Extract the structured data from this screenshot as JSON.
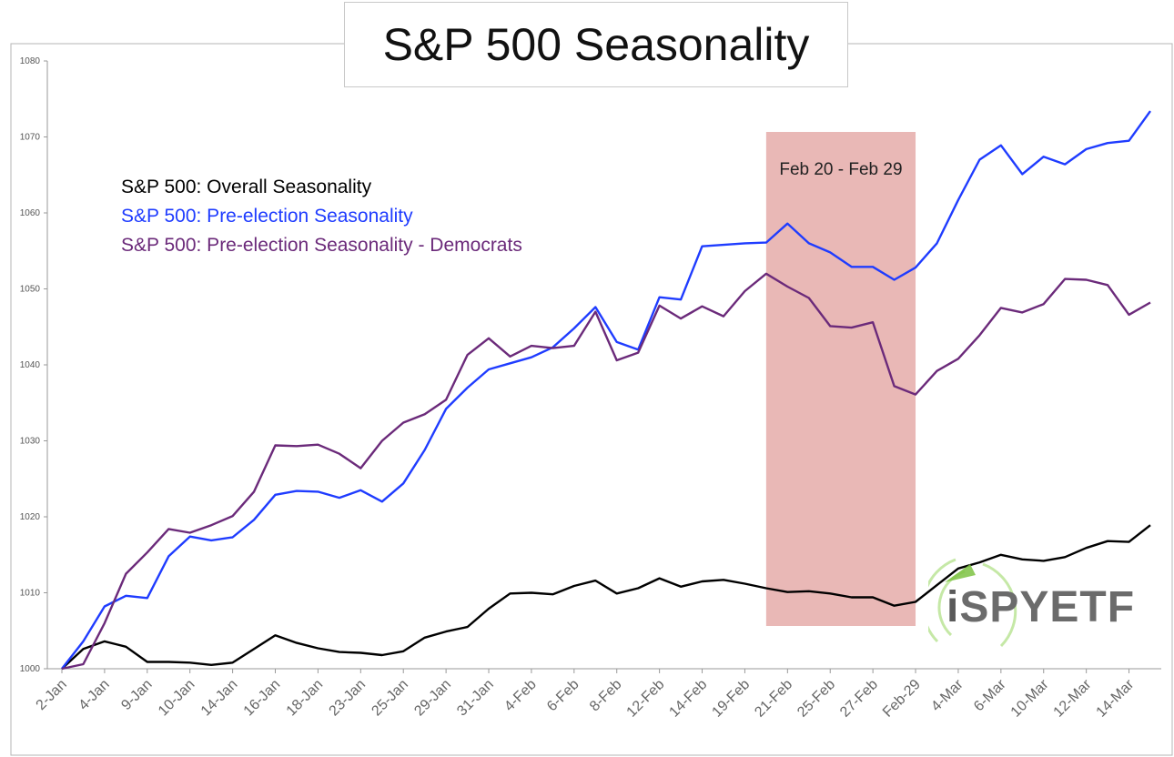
{
  "title": "S&P 500 Seasonality",
  "legend": [
    {
      "label": "S&P 500: Overall Seasonality",
      "color": "#000000"
    },
    {
      "label": "S&P 500: Pre-election Seasonality",
      "color": "#1f3cff"
    },
    {
      "label": "S&P 500: Pre-election Seasonality - Democrats",
      "color": "#6b2a7a"
    }
  ],
  "highlight": {
    "label": "Feb 20 - Feb 29",
    "color": "#e9b8b6"
  },
  "logo": {
    "text_i": "i",
    "text_rest": "SPYETF"
  },
  "chart_data": {
    "type": "line",
    "title": "S&P 500 Seasonality",
    "xlabel": "",
    "ylabel": "",
    "ylim": [
      1000,
      1080
    ],
    "yticks": [
      1000,
      1010,
      1020,
      1030,
      1040,
      1050,
      1060,
      1070,
      1080
    ],
    "x_tick_labels": [
      "2-Jan",
      "4-Jan",
      "9-Jan",
      "10-Jan",
      "14-Jan",
      "16-Jan",
      "18-Jan",
      "23-Jan",
      "25-Jan",
      "29-Jan",
      "31-Jan",
      "4-Feb",
      "6-Feb",
      "8-Feb",
      "12-Feb",
      "14-Feb",
      "19-Feb",
      "21-Feb",
      "25-Feb",
      "27-Feb",
      "Feb-29",
      "4-Mar",
      "6-Mar",
      "10-Mar",
      "12-Mar",
      "14-Mar"
    ],
    "highlight_range": [
      "20-Feb",
      "29-Feb"
    ],
    "grid": false,
    "series": [
      {
        "name": "S&P 500: Overall Seasonality",
        "color": "#000000",
        "values": [
          1000,
          1002.6,
          1003.6,
          1002.9,
          1000.9,
          1000.9,
          1000.8,
          1000.5,
          1000.8,
          1002.6,
          1004.4,
          1003.4,
          1002.7,
          1002.2,
          1002.1,
          1001.8,
          1002.3,
          1004.1,
          1004.9,
          1005.5,
          1007.9,
          1009.9,
          1010.0,
          1009.8,
          1010.9,
          1011.6,
          1009.9,
          1010.6,
          1011.9,
          1010.8,
          1011.5,
          1011.7,
          1011.2,
          1010.6,
          1010.1,
          1010.2,
          1009.9,
          1009.4,
          1009.4,
          1008.3,
          1008.8,
          1011.0,
          1013.2,
          1014.0,
          1015.0,
          1014.4,
          1014.2,
          1014.7,
          1015.9,
          1016.8,
          1016.7,
          1018.9
        ]
      },
      {
        "name": "S&P 500: Pre-election Seasonality",
        "color": "#1f3cff",
        "values": [
          1000,
          1003.6,
          1008.2,
          1009.6,
          1009.3,
          1014.8,
          1017.4,
          1016.9,
          1017.3,
          1019.6,
          1022.9,
          1023.4,
          1023.3,
          1022.5,
          1023.5,
          1022.0,
          1024.4,
          1028.8,
          1034.2,
          1037.0,
          1039.4,
          1040.2,
          1041.0,
          1042.3,
          1044.8,
          1047.6,
          1043.0,
          1042.0,
          1048.9,
          1048.6,
          1055.6,
          1055.8,
          1056.0,
          1056.1,
          1058.6,
          1056.0,
          1054.8,
          1052.9,
          1052.9,
          1051.2,
          1052.8,
          1056.0,
          1061.7,
          1067.0,
          1068.9,
          1065.1,
          1067.4,
          1066.4,
          1068.4,
          1069.2,
          1069.5,
          1073.4
        ]
      },
      {
        "name": "S&P 500: Pre-election Seasonality - Democrats",
        "color": "#6b2a7a",
        "values": [
          1000,
          1000.6,
          1006.0,
          1012.5,
          1015.3,
          1018.4,
          1017.9,
          1018.9,
          1020.1,
          1023.3,
          1029.4,
          1029.3,
          1029.5,
          1028.3,
          1026.4,
          1030.0,
          1032.4,
          1033.5,
          1035.4,
          1041.3,
          1043.5,
          1041.1,
          1042.5,
          1042.2,
          1042.5,
          1047.0,
          1040.6,
          1041.6,
          1047.8,
          1046.1,
          1047.7,
          1046.4,
          1049.7,
          1052.0,
          1050.3,
          1048.8,
          1045.1,
          1044.9,
          1045.6,
          1037.2,
          1036.1,
          1039.2,
          1040.8,
          1043.9,
          1047.5,
          1046.9,
          1048.0,
          1051.3,
          1051.2,
          1050.5,
          1046.6,
          1048.2
        ]
      }
    ]
  }
}
